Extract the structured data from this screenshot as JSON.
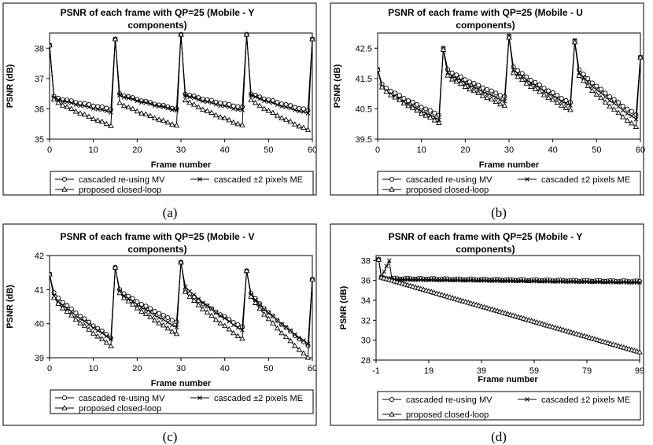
{
  "figure_captions": [
    "(a)",
    "(b)",
    "(c)",
    "(d)"
  ],
  "legend_labels": [
    "cascaded re-using MV",
    "cascaded ±2 pixels ME",
    "proposed closed-loop"
  ],
  "chart_data": [
    {
      "type": "line",
      "title_lines": [
        "PSNR of each frame with QP=25 (Mobile - Y",
        "components)"
      ],
      "xlabel": "Frame number",
      "ylabel": "PSNR (dB)",
      "xlim": [
        0,
        60
      ],
      "ylim": [
        35,
        38.5
      ],
      "xticks": [
        0,
        10,
        20,
        30,
        40,
        50,
        60
      ],
      "yticks": [
        35,
        36,
        37,
        38
      ],
      "ytick_labels": [
        "35",
        "36",
        "37",
        "38"
      ],
      "peaks": [
        0,
        15,
        30,
        45,
        60
      ],
      "series": [
        {
          "name": "cascaded re-using MV",
          "marker": "circle",
          "peak": [
            38.1,
            38.3,
            38.45,
            38.45,
            38.3
          ],
          "start": [
            36.4,
            36.5,
            36.5,
            36.5
          ],
          "end": [
            36.0,
            36.0,
            36.05,
            35.95
          ]
        },
        {
          "name": "cascaded ±2 pixels ME",
          "marker": "x",
          "peak": [
            38.1,
            38.3,
            38.45,
            38.45,
            38.3
          ],
          "start": [
            36.35,
            36.45,
            36.45,
            36.45
          ],
          "end": [
            35.9,
            35.95,
            35.95,
            35.85
          ]
        },
        {
          "name": "proposed closed-loop",
          "marker": "triangle",
          "peak": [
            38.1,
            38.3,
            38.45,
            38.45,
            38.3
          ],
          "start": [
            36.3,
            36.2,
            36.3,
            36.3
          ],
          "end": [
            35.45,
            35.45,
            35.45,
            35.3
          ]
        }
      ]
    },
    {
      "type": "line",
      "title_lines": [
        "PSNR of each frame with QP=25 (Mobile - U",
        "components)"
      ],
      "xlabel": "Frame number",
      "ylabel": "PSNR (dB)",
      "xlim": [
        0,
        60
      ],
      "ylim": [
        39.5,
        43
      ],
      "xticks": [
        0,
        10,
        20,
        30,
        40,
        50,
        60
      ],
      "yticks": [
        39.5,
        40.5,
        41.5,
        42.5
      ],
      "ytick_labels": [
        "39.5",
        "40.5",
        "41.5",
        "42.5"
      ],
      "peaks": [
        0,
        15,
        30,
        45,
        60
      ],
      "series": [
        {
          "name": "cascaded re-using MV",
          "marker": "circle",
          "peak": [
            41.8,
            42.5,
            42.9,
            42.75,
            42.2
          ],
          "start": [
            41.3,
            41.8,
            41.9,
            41.8
          ],
          "end": [
            40.3,
            40.9,
            40.7,
            40.3
          ]
        },
        {
          "name": "cascaded ±2 pixels ME",
          "marker": "x",
          "peak": [
            41.8,
            42.5,
            42.9,
            42.75,
            42.2
          ],
          "start": [
            41.2,
            41.7,
            41.8,
            41.7
          ],
          "end": [
            40.15,
            40.75,
            40.6,
            40.15
          ]
        },
        {
          "name": "proposed closed-loop",
          "marker": "triangle",
          "peak": [
            41.8,
            42.45,
            42.85,
            42.7,
            42.2
          ],
          "start": [
            41.2,
            41.6,
            41.7,
            41.6
          ],
          "end": [
            40.05,
            40.6,
            40.45,
            39.9
          ]
        }
      ]
    },
    {
      "type": "line",
      "title_lines": [
        "PSNR of each frame with QP=25 (Mobile - V",
        "components)"
      ],
      "xlabel": "Frame number",
      "ylabel": "PSNR (dB)",
      "xlim": [
        0,
        60
      ],
      "ylim": [
        39,
        42
      ],
      "xticks": [
        0,
        10,
        20,
        30,
        40,
        50,
        60
      ],
      "yticks": [
        39,
        40,
        41,
        42
      ],
      "ytick_labels": [
        "39",
        "40",
        "41",
        "42"
      ],
      "peaks": [
        0,
        15,
        30,
        45,
        60
      ],
      "series": [
        {
          "name": "cascaded re-using MV",
          "marker": "circle",
          "peak": [
            41.45,
            41.65,
            41.8,
            41.55,
            41.3
          ],
          "start": [
            40.9,
            41.0,
            41.0,
            40.9
          ],
          "end": [
            39.6,
            40.05,
            39.9,
            39.35
          ]
        },
        {
          "name": "cascaded ±2 pixels ME",
          "marker": "x",
          "peak": [
            41.45,
            41.65,
            41.8,
            41.55,
            41.3
          ],
          "start": [
            40.8,
            40.95,
            41.1,
            40.85
          ],
          "end": [
            39.55,
            39.9,
            39.8,
            39.4
          ]
        },
        {
          "name": "proposed closed-loop",
          "marker": "triangle",
          "peak": [
            41.45,
            41.65,
            41.8,
            41.55,
            41.3
          ],
          "start": [
            40.75,
            40.9,
            40.95,
            40.8
          ],
          "end": [
            39.35,
            39.7,
            39.55,
            39.0
          ]
        }
      ]
    },
    {
      "type": "line",
      "title_lines": [
        "PSNR of each frame with QP=25 (Mobile - Y",
        "components)"
      ],
      "xlabel": "Frame number",
      "ylabel": "PSNR (dB)",
      "xlim": [
        -1,
        99
      ],
      "ylim": [
        28,
        38.5
      ],
      "xticks": [
        -1,
        19,
        39,
        59,
        79,
        99
      ],
      "yticks": [
        28,
        30,
        32,
        34,
        36,
        38
      ],
      "ytick_labels": [
        "28",
        "30",
        "32",
        "34",
        "36",
        "38"
      ],
      "series": [
        {
          "name": "cascaded re-using MV",
          "marker": "circle",
          "x": [
            0,
            1,
            2,
            99
          ],
          "y": [
            38.1,
            36.3,
            36.2,
            35.9
          ]
        },
        {
          "name": "cascaded ±2 pixels ME",
          "marker": "x",
          "x": [
            0,
            1,
            4,
            5,
            99
          ],
          "y": [
            38.1,
            36.3,
            38.0,
            36.1,
            35.8
          ]
        },
        {
          "name": "proposed closed-loop",
          "marker": "triangle",
          "x": [
            0,
            1,
            99
          ],
          "y": [
            38.1,
            36.3,
            28.8
          ]
        }
      ]
    }
  ]
}
